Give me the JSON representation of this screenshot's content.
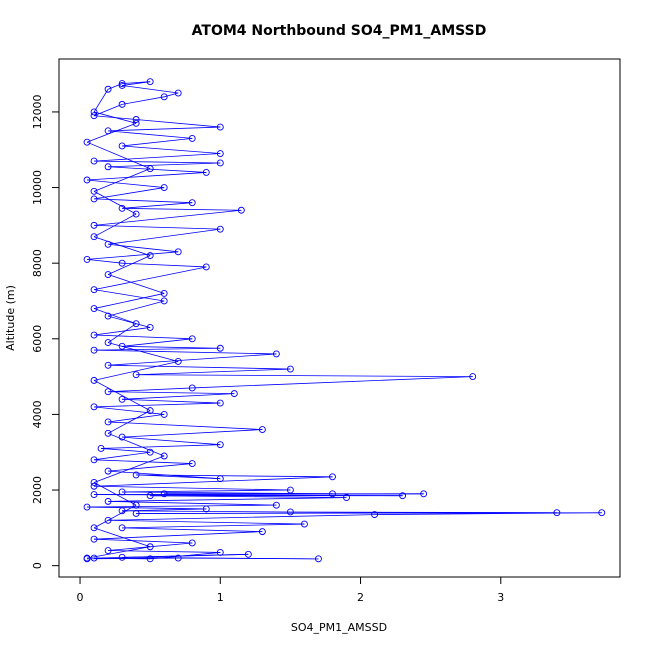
{
  "chart_data": {
    "type": "scatter",
    "title": "ATOM4 Northbound SO4_PM1_AMSSD",
    "xlabel": "SO4_PM1_AMSSD",
    "ylabel": "Altitude (m)",
    "xlim": [
      -0.15,
      3.85
    ],
    "ylim": [
      -300,
      13400
    ],
    "xticks": [
      0,
      1,
      2,
      3
    ],
    "yticks": [
      0,
      2000,
      4000,
      6000,
      8000,
      10000,
      12000
    ],
    "grid": false,
    "style": "points connected by lines (type='b')",
    "series": [
      {
        "color": "#0000ff",
        "points": [
          [
            0.05,
            180
          ],
          [
            0.7,
            200
          ],
          [
            1.7,
            180
          ],
          [
            0.3,
            220
          ],
          [
            1.2,
            300
          ],
          [
            0.1,
            200
          ],
          [
            0.5,
            180
          ],
          [
            1.0,
            350
          ],
          [
            0.2,
            400
          ],
          [
            0.8,
            600
          ],
          [
            0.1,
            700
          ],
          [
            1.3,
            900
          ],
          [
            0.3,
            1000
          ],
          [
            1.6,
            1100
          ],
          [
            0.2,
            1200
          ],
          [
            2.1,
            1350
          ],
          [
            3.72,
            1400
          ],
          [
            0.4,
            1380
          ],
          [
            3.4,
            1400
          ],
          [
            1.5,
            1420
          ],
          [
            0.3,
            1450
          ],
          [
            0.9,
            1500
          ],
          [
            0.05,
            1550
          ],
          [
            1.4,
            1600
          ],
          [
            0.2,
            1700
          ],
          [
            1.9,
            1800
          ],
          [
            0.5,
            1850
          ],
          [
            2.3,
            1850
          ],
          [
            0.1,
            1880
          ],
          [
            2.45,
            1900
          ],
          [
            0.6,
            1900
          ],
          [
            1.8,
            1900
          ],
          [
            0.3,
            1950
          ],
          [
            1.5,
            2000
          ],
          [
            0.1,
            2100
          ],
          [
            1.8,
            2350
          ],
          [
            0.4,
            2400
          ],
          [
            1.0,
            2300
          ],
          [
            0.2,
            2500
          ],
          [
            0.8,
            2700
          ],
          [
            0.1,
            2800
          ],
          [
            0.5,
            3000
          ],
          [
            0.15,
            3100
          ],
          [
            1.0,
            3200
          ],
          [
            0.3,
            3400
          ],
          [
            1.3,
            3600
          ],
          [
            0.2,
            3800
          ],
          [
            0.6,
            4000
          ],
          [
            0.1,
            4200
          ],
          [
            1.0,
            4300
          ],
          [
            0.3,
            4400
          ],
          [
            1.1,
            4550
          ],
          [
            0.2,
            4600
          ],
          [
            0.8,
            4700
          ],
          [
            2.8,
            5000
          ],
          [
            0.4,
            5050
          ],
          [
            1.5,
            5200
          ],
          [
            0.2,
            5300
          ],
          [
            1.4,
            5600
          ],
          [
            0.1,
            5700
          ],
          [
            1.0,
            5750
          ],
          [
            0.3,
            5800
          ],
          [
            0.8,
            6000
          ],
          [
            0.1,
            6100
          ],
          [
            0.5,
            6300
          ],
          [
            0.2,
            6600
          ],
          [
            0.6,
            7000
          ],
          [
            0.1,
            7300
          ],
          [
            0.9,
            7900
          ],
          [
            0.3,
            8000
          ],
          [
            0.05,
            8100
          ],
          [
            0.7,
            8300
          ],
          [
            0.2,
            8500
          ],
          [
            1.0,
            8900
          ],
          [
            0.1,
            9000
          ],
          [
            1.15,
            9400
          ],
          [
            0.3,
            9450
          ],
          [
            0.8,
            9600
          ],
          [
            0.1,
            9700
          ],
          [
            0.6,
            10000
          ],
          [
            0.05,
            10200
          ],
          [
            0.9,
            10400
          ],
          [
            0.2,
            10550
          ],
          [
            1.0,
            10650
          ],
          [
            0.1,
            10700
          ],
          [
            1.0,
            10900
          ],
          [
            0.3,
            11100
          ],
          [
            0.8,
            11300
          ],
          [
            0.2,
            11500
          ],
          [
            1.0,
            11600
          ],
          [
            0.4,
            11800
          ],
          [
            0.1,
            11900
          ],
          [
            0.3,
            12200
          ],
          [
            0.6,
            12400
          ],
          [
            0.7,
            12500
          ],
          [
            0.3,
            12700
          ],
          [
            0.5,
            12800
          ],
          [
            0.3,
            12750
          ],
          [
            0.2,
            12600
          ],
          [
            0.1,
            12000
          ],
          [
            0.4,
            11700
          ],
          [
            0.05,
            11200
          ],
          [
            0.5,
            10500
          ],
          [
            0.1,
            9900
          ],
          [
            0.4,
            9300
          ],
          [
            0.1,
            8700
          ],
          [
            0.5,
            8200
          ],
          [
            0.2,
            7700
          ],
          [
            0.6,
            7200
          ],
          [
            0.1,
            6800
          ],
          [
            0.4,
            6400
          ],
          [
            0.2,
            5900
          ],
          [
            0.7,
            5400
          ],
          [
            0.1,
            4900
          ],
          [
            0.5,
            4100
          ],
          [
            0.2,
            3500
          ],
          [
            0.6,
            2900
          ],
          [
            0.1,
            2200
          ],
          [
            0.4,
            1600
          ],
          [
            0.1,
            1000
          ],
          [
            0.5,
            500
          ],
          [
            0.05,
            200
          ]
        ]
      }
    ]
  }
}
